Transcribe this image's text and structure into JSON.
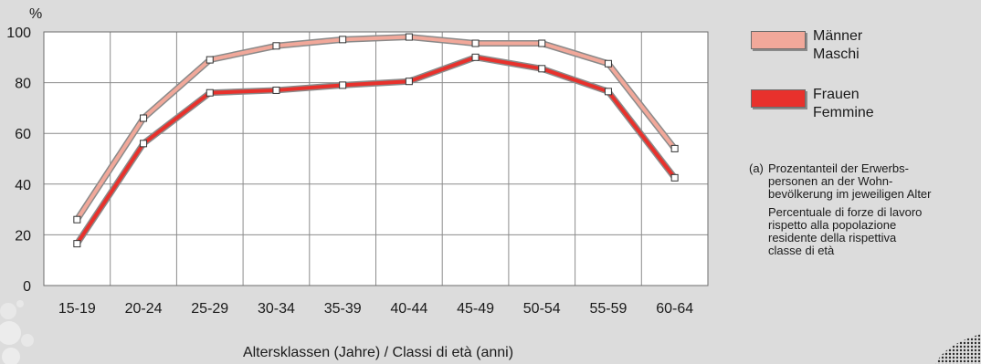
{
  "chart_data": {
    "type": "line",
    "categories": [
      "15-19",
      "20-24",
      "25-29",
      "30-34",
      "35-39",
      "40-44",
      "45-49",
      "50-54",
      "55-59",
      "60-64"
    ],
    "series": [
      {
        "name": "Männer / Maschi",
        "color": "#f1a89a",
        "values": [
          26,
          66,
          89,
          94.5,
          97,
          98,
          95.5,
          95.5,
          87.5,
          54
        ]
      },
      {
        "name": "Frauen / Femmine",
        "color": "#e8312c",
        "values": [
          16.5,
          56,
          76,
          77,
          79,
          80.5,
          90,
          85.5,
          76.5,
          42.5
        ]
      }
    ],
    "ylim": [
      0,
      100
    ],
    "yticks": [
      0,
      20,
      40,
      60,
      80,
      100
    ],
    "y_unit": "%",
    "xlabel": "Altersklassen (Jahre) / Classi di età (anni)",
    "grid": true
  },
  "legend": {
    "men_de": "Männer",
    "men_it": "Maschi",
    "women_de": "Frauen",
    "women_it": "Femmine"
  },
  "footnote": {
    "label": "(a)",
    "de_lines": [
      "Prozentanteil der Erwerbs-",
      "personen an der Wohn-",
      "bevölkerung im jeweiligen Alter"
    ],
    "it_lines": [
      "Percentuale di forze di lavoro",
      "rispetto alla popolazione",
      "residente della rispettiva",
      "classe di età"
    ]
  }
}
